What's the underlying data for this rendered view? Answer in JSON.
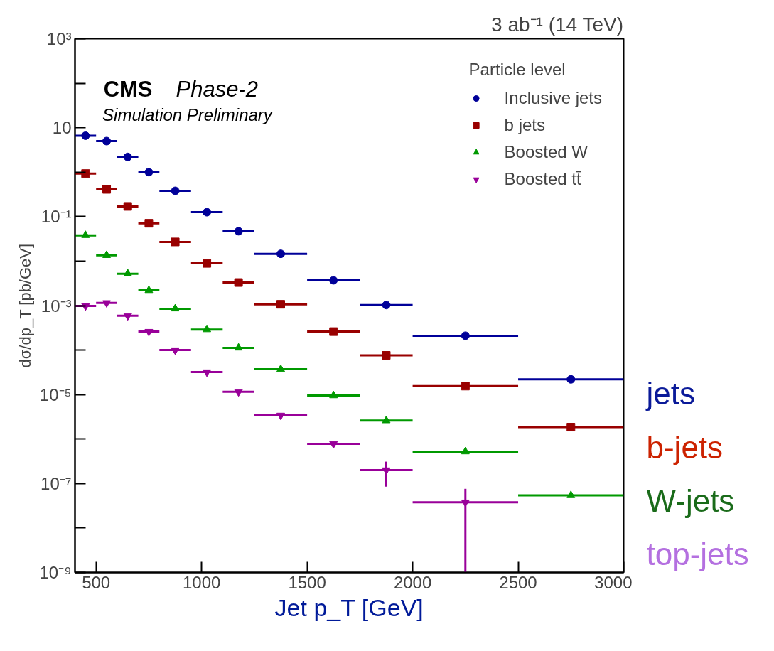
{
  "chart_data": {
    "type": "scatter",
    "title": "3 ab⁻¹ (14 TeV)",
    "xlabel": "Jet p_T [GeV]",
    "ylabel": "dσ/dp_T [pb/GeV]",
    "legend_title": "Particle level",
    "annotations": [
      "CMS",
      "Phase-2",
      "Simulation Preliminary",
      "jets",
      "b-jets",
      "W-jets",
      "top-jets"
    ],
    "x": [
      450,
      550,
      650,
      750,
      875,
      1025,
      1175,
      1375,
      1625,
      1875,
      2250,
      2750
    ],
    "series": [
      {
        "name": "Inclusive jets",
        "color": "#000099",
        "marker": "circle",
        "values": [
          6.6,
          5.0,
          2.2,
          1.0,
          0.38,
          0.126,
          0.047,
          0.0146,
          0.0037,
          0.00103,
          0.00021,
          2.2e-05
        ],
        "xerrors": [
          50,
          50,
          50,
          50,
          75,
          75,
          75,
          125,
          125,
          125,
          250,
          250
        ]
      },
      {
        "name": "b jets",
        "color": "#990000",
        "marker": "square",
        "values": [
          0.93,
          0.41,
          0.17,
          0.071,
          0.027,
          0.0089,
          0.0033,
          0.00107,
          0.00026,
          7.6e-05,
          1.55e-05,
          1.85e-06
        ],
        "xerrors": [
          50,
          50,
          50,
          50,
          75,
          75,
          75,
          125,
          125,
          125,
          250,
          250
        ]
      },
      {
        "name": "Boosted W",
        "color": "#009900",
        "marker": "triangle",
        "values": [
          0.038,
          0.0135,
          0.0052,
          0.0022,
          0.00085,
          0.00029,
          0.000112,
          3.7e-05,
          9.5e-06,
          2.6e-06,
          5.2e-07,
          5.4e-08
        ],
        "xerrors": [
          50,
          50,
          50,
          50,
          75,
          75,
          75,
          125,
          125,
          125,
          250,
          250
        ]
      },
      {
        "name": "Boosted tt̄",
        "color": "#990099",
        "marker": "triangle_down",
        "values": [
          0.00098,
          0.00115,
          0.00059,
          0.00026,
          0.0001,
          3.2e-05,
          1.15e-05,
          3.4e-06,
          7.8e-07,
          2e-07,
          3.8e-08,
          null
        ],
        "xerrors": [
          50,
          50,
          50,
          50,
          75,
          75,
          75,
          125,
          125,
          125,
          250,
          null
        ],
        "errors": [
          null,
          null,
          null,
          null,
          null,
          null,
          null,
          null,
          null,
          [
            8.5e-08,
            3.1e-07
          ],
          [
            1e-09,
            7.6e-08
          ],
          null
        ]
      }
    ],
    "xlim": [
      400,
      3000
    ],
    "xticks": [
      500,
      1000,
      1500,
      2000,
      2500,
      3000
    ],
    "ylim": [
      1e-09,
      1000
    ],
    "yticks": [
      {
        "value": 1000,
        "label": "10³"
      },
      {
        "value": 100,
        "label": null
      },
      {
        "value": 10,
        "label": "10"
      },
      {
        "value": 1,
        "label": null
      },
      {
        "value": 0.1,
        "label": "10⁻¹"
      },
      {
        "value": 0.01,
        "label": null
      },
      {
        "value": 0.001,
        "label": "10⁻³"
      },
      {
        "value": 0.0001,
        "label": null
      },
      {
        "value": 1e-05,
        "label": "10⁻⁵"
      },
      {
        "value": 1e-06,
        "label": null
      },
      {
        "value": 1e-07,
        "label": "10⁻⁷"
      },
      {
        "value": 1e-08,
        "label": null
      },
      {
        "value": 1e-09,
        "label": "10⁻⁹"
      }
    ],
    "log": "y",
    "grid": false,
    "legend": "top right"
  }
}
